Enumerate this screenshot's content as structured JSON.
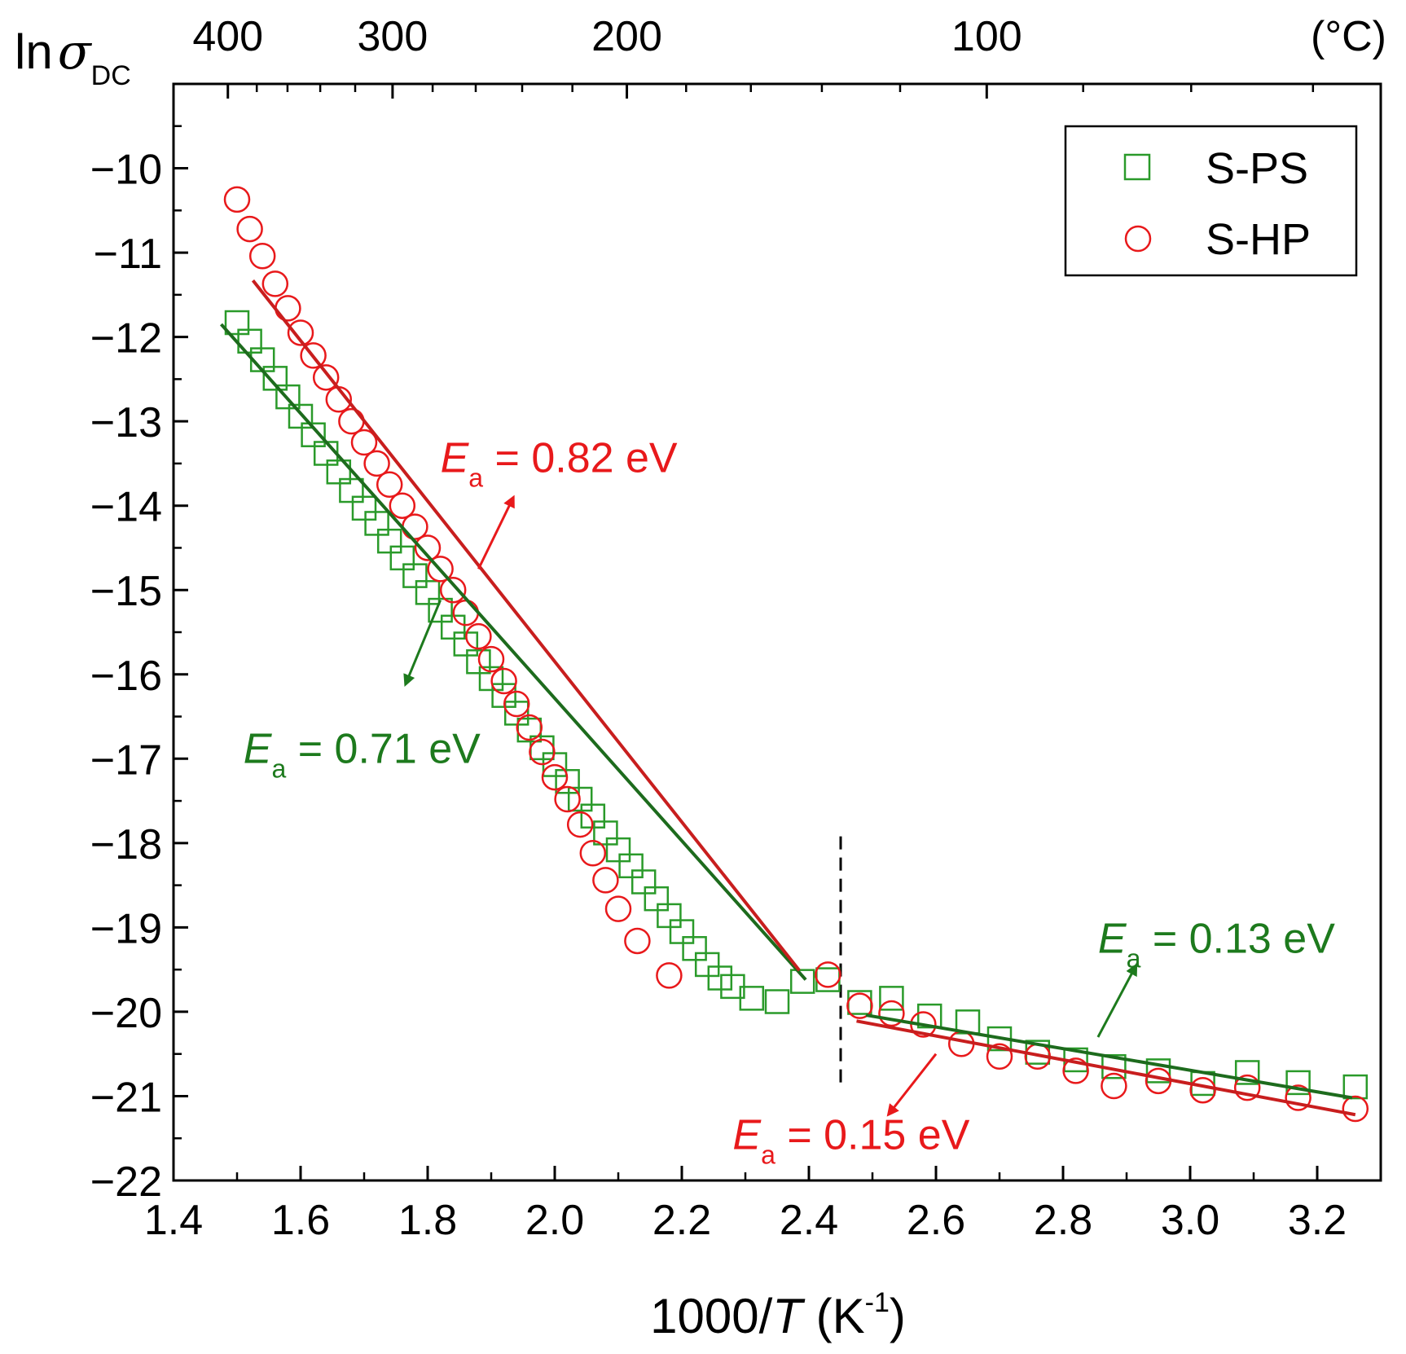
{
  "chart_data": {
    "type": "scatter",
    "title": "",
    "xlabel": {
      "prefix": "1000/",
      "italic": "T",
      "unit_open": " (K",
      "sup": "-1",
      "unit_close": ")"
    },
    "ylabel": {
      "prefix": "ln",
      "symbol": "σ",
      "sub": "DC"
    },
    "xlim": [
      1.4,
      3.3
    ],
    "ylim": [
      -22,
      -9
    ],
    "x_ticks": [
      "1.4",
      "1.6",
      "1.8",
      "2.0",
      "2.2",
      "2.4",
      "2.6",
      "2.8",
      "3.0",
      "3.2"
    ],
    "y_ticks": [
      "−22",
      "−21",
      "−20",
      "−19",
      "−18",
      "−17",
      "−16",
      "−15",
      "−14",
      "−13",
      "−12",
      "−11",
      "−10"
    ],
    "top_axis": {
      "unit_label": "(°C)",
      "ticks": [
        {
          "label": "400",
          "celsius": 400
        },
        {
          "label": "300",
          "celsius": 300
        },
        {
          "label": "200",
          "celsius": 200
        },
        {
          "label": "100",
          "celsius": 100
        }
      ]
    },
    "legend": {
      "position": "top-right",
      "entries": [
        "S-PS",
        "S-HP"
      ]
    },
    "transition_line_x": 2.45,
    "series": [
      {
        "name": "S-PS",
        "marker": "square",
        "color": "#2a9a2a",
        "points": [
          [
            1.5,
            -11.83
          ],
          [
            1.52,
            -12.05
          ],
          [
            1.54,
            -12.27
          ],
          [
            1.56,
            -12.49
          ],
          [
            1.58,
            -12.71
          ],
          [
            1.6,
            -12.94
          ],
          [
            1.62,
            -13.16
          ],
          [
            1.64,
            -13.38
          ],
          [
            1.66,
            -13.6
          ],
          [
            1.68,
            -13.82
          ],
          [
            1.7,
            -14.03
          ],
          [
            1.72,
            -14.21
          ],
          [
            1.74,
            -14.42
          ],
          [
            1.76,
            -14.62
          ],
          [
            1.78,
            -14.83
          ],
          [
            1.8,
            -15.03
          ],
          [
            1.82,
            -15.24
          ],
          [
            1.84,
            -15.44
          ],
          [
            1.86,
            -15.64
          ],
          [
            1.88,
            -15.85
          ],
          [
            1.9,
            -16.05
          ],
          [
            1.92,
            -16.25
          ],
          [
            1.94,
            -16.46
          ],
          [
            1.96,
            -16.66
          ],
          [
            1.98,
            -16.87
          ],
          [
            2.0,
            -17.07
          ],
          [
            2.02,
            -17.27
          ],
          [
            2.04,
            -17.48
          ],
          [
            2.06,
            -17.68
          ],
          [
            2.08,
            -17.88
          ],
          [
            2.1,
            -18.08
          ],
          [
            2.12,
            -18.27
          ],
          [
            2.14,
            -18.46
          ],
          [
            2.16,
            -18.66
          ],
          [
            2.18,
            -18.86
          ],
          [
            2.2,
            -19.05
          ],
          [
            2.22,
            -19.25
          ],
          [
            2.24,
            -19.44
          ],
          [
            2.26,
            -19.6
          ],
          [
            2.28,
            -19.7
          ],
          [
            2.31,
            -19.84
          ],
          [
            2.35,
            -19.88
          ],
          [
            2.39,
            -19.64
          ],
          [
            2.43,
            -19.62
          ],
          [
            2.48,
            -19.89
          ],
          [
            2.53,
            -19.84
          ],
          [
            2.59,
            -20.05
          ],
          [
            2.65,
            -20.12
          ],
          [
            2.7,
            -20.32
          ],
          [
            2.76,
            -20.48
          ],
          [
            2.82,
            -20.57
          ],
          [
            2.88,
            -20.65
          ],
          [
            2.95,
            -20.7
          ],
          [
            3.02,
            -20.85
          ],
          [
            3.09,
            -20.72
          ],
          [
            3.17,
            -20.84
          ],
          [
            3.26,
            -20.89
          ]
        ]
      },
      {
        "name": "S-HP",
        "marker": "circle",
        "color": "#e8191b",
        "points": [
          [
            1.5,
            -10.37
          ],
          [
            1.52,
            -10.72
          ],
          [
            1.54,
            -11.04
          ],
          [
            1.56,
            -11.37
          ],
          [
            1.58,
            -11.66
          ],
          [
            1.6,
            -11.95
          ],
          [
            1.62,
            -12.22
          ],
          [
            1.64,
            -12.48
          ],
          [
            1.66,
            -12.74
          ],
          [
            1.68,
            -13.0
          ],
          [
            1.7,
            -13.25
          ],
          [
            1.72,
            -13.5
          ],
          [
            1.74,
            -13.75
          ],
          [
            1.76,
            -14.0
          ],
          [
            1.78,
            -14.25
          ],
          [
            1.8,
            -14.5
          ],
          [
            1.82,
            -14.75
          ],
          [
            1.84,
            -15.0
          ],
          [
            1.86,
            -15.27
          ],
          [
            1.88,
            -15.55
          ],
          [
            1.9,
            -15.82
          ],
          [
            1.92,
            -16.08
          ],
          [
            1.94,
            -16.35
          ],
          [
            1.96,
            -16.63
          ],
          [
            1.98,
            -16.92
          ],
          [
            2.0,
            -17.22
          ],
          [
            2.02,
            -17.48
          ],
          [
            2.04,
            -17.78
          ],
          [
            2.06,
            -18.12
          ],
          [
            2.08,
            -18.44
          ],
          [
            2.1,
            -18.78
          ],
          [
            2.13,
            -19.16
          ],
          [
            2.18,
            -19.57
          ],
          [
            2.43,
            -19.56
          ],
          [
            2.48,
            -19.93
          ],
          [
            2.53,
            -20.02
          ],
          [
            2.58,
            -20.15
          ],
          [
            2.64,
            -20.38
          ],
          [
            2.7,
            -20.53
          ],
          [
            2.76,
            -20.53
          ],
          [
            2.82,
            -20.7
          ],
          [
            2.88,
            -20.88
          ],
          [
            2.95,
            -20.82
          ],
          [
            3.02,
            -20.93
          ],
          [
            3.09,
            -20.9
          ],
          [
            3.17,
            -21.02
          ],
          [
            3.26,
            -21.15
          ]
        ]
      }
    ],
    "fits": [
      {
        "name": "S-PS high-T fit",
        "color": "#1d6b1d",
        "x": [
          1.475,
          2.395
        ],
        "y": [
          -11.85,
          -19.62
        ]
      },
      {
        "name": "S-HP high-T fit",
        "color": "#c81e1e",
        "x": [
          1.525,
          2.385
        ],
        "y": [
          -11.33,
          -19.51
        ]
      },
      {
        "name": "S-PS low-T fit",
        "color": "#1d6b1d",
        "x": [
          2.49,
          3.255
        ],
        "y": [
          -20.04,
          -21.02
        ]
      },
      {
        "name": "S-HP low-T fit",
        "color": "#c81e1e",
        "x": [
          2.475,
          3.26
        ],
        "y": [
          -20.11,
          -21.22
        ]
      }
    ],
    "annotations": [
      {
        "symbol": "E",
        "sub": "a",
        "value": " = 0.82 eV",
        "color": "#e8191b",
        "x": 1.82,
        "y": -13.6,
        "arrow_from": [
          1.88,
          -14.75
        ],
        "arrow_to": [
          1.935,
          -13.9
        ]
      },
      {
        "symbol": "E",
        "sub": "a",
        "value": " = 0.71 eV",
        "color": "#1d7a1d",
        "x": 1.51,
        "y": -17.05,
        "arrow_from": [
          1.82,
          -15.12
        ],
        "arrow_to": [
          1.765,
          -16.12
        ]
      },
      {
        "symbol": "E",
        "sub": "a",
        "value": " = 0.13 eV",
        "color": "#1d7a1d",
        "x": 2.855,
        "y": -19.3,
        "arrow_from": [
          2.855,
          -20.3
        ],
        "arrow_to": [
          2.915,
          -19.45
        ]
      },
      {
        "symbol": "E",
        "sub": "a",
        "value": " = 0.15 eV",
        "color": "#e8191b",
        "x": 2.28,
        "y": -21.63,
        "arrow_from": [
          2.6,
          -20.5
        ],
        "arrow_to": [
          2.525,
          -21.22
        ]
      }
    ]
  }
}
